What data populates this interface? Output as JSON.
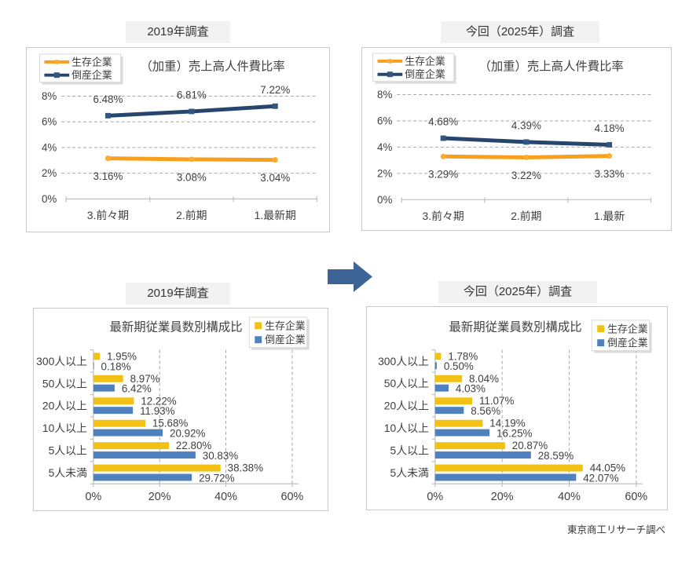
{
  "page": {
    "background": "#FFFFFF",
    "source_note": "東京商工リサーチ調べ"
  },
  "colors": {
    "survive_line": "#F8A01D",
    "survive_marker": "#F9AC2E",
    "bankrupt_line": "#26466D",
    "bankrupt_marker": "#33577F",
    "survive_bar": "#F2C116",
    "bankrupt_bar": "#4E81BD",
    "arrow": "#3C6497",
    "grid": "#A6A6A6",
    "axis": "#BFBFBF",
    "text": "#3F3F3F",
    "title_text": "#404040",
    "panel_border": "#C6C6C6",
    "panel_title_bg": "#F2F2F2",
    "legend_border": "#D9D9D9"
  },
  "chart_data": [
    {
      "id": "line2019",
      "type": "line",
      "panel_title": "2019年調査",
      "title": "（加重）売上高人件費比率",
      "categories": [
        "3.前々期",
        "2.前期",
        "1.最新期"
      ],
      "y_ticks": [
        "0%",
        "2%",
        "4%",
        "6%",
        "8%"
      ],
      "ylim": [
        0,
        8
      ],
      "grid": "dashed-horizontal",
      "legend_position": "top-left",
      "series": [
        {
          "name": "生存企業",
          "role": "survive",
          "marker": "circle",
          "label_side": "below",
          "values": [
            3.16,
            3.08,
            3.04
          ],
          "labels": [
            "3.16%",
            "3.08%",
            "3.04%"
          ]
        },
        {
          "name": "倒産企業",
          "role": "bankrupt",
          "marker": "square",
          "label_side": "above",
          "values": [
            6.48,
            6.81,
            7.22
          ],
          "labels": [
            "6.48%",
            "6.81%",
            "7.22%"
          ]
        }
      ]
    },
    {
      "id": "line2025",
      "type": "line",
      "panel_title": "今回（2025年）調査",
      "title": "（加重）売上高人件費比率",
      "categories": [
        "3.前々期",
        "2.前期",
        "1.最新"
      ],
      "y_ticks": [
        "0%",
        "2%",
        "4%",
        "6%",
        "8%"
      ],
      "ylim": [
        0,
        8
      ],
      "grid": "dashed-horizontal",
      "legend_position": "top-left",
      "series": [
        {
          "name": "生存企業",
          "role": "survive",
          "marker": "circle",
          "label_side": "below",
          "values": [
            3.29,
            3.22,
            3.33
          ],
          "labels": [
            "3.29%",
            "3.22%",
            "3.33%"
          ]
        },
        {
          "name": "倒産企業",
          "role": "bankrupt",
          "marker": "square",
          "label_side": "above",
          "values": [
            4.68,
            4.39,
            4.18
          ],
          "labels": [
            "4.68%",
            "4.39%",
            "4.18%"
          ]
        }
      ]
    },
    {
      "id": "bar2019",
      "type": "bar",
      "panel_title": "2019年調査",
      "title": "最新期従業員数別構成比",
      "categories": [
        "300人以上",
        "50人以上",
        "20人以上",
        "10人以上",
        "5人以上",
        "5人未満"
      ],
      "x_ticks": [
        "0%",
        "20%",
        "40%",
        "60%"
      ],
      "xlim": [
        0,
        60
      ],
      "grid": "dashed-vertical",
      "legend_position": "top-right",
      "series": [
        {
          "name": "生存企業",
          "role": "survive",
          "values": [
            1.95,
            8.97,
            12.22,
            15.68,
            22.8,
            38.38
          ],
          "labels": [
            "1.95%",
            "8.97%",
            "12.22%",
            "15.68%",
            "22.80%",
            "38.38%"
          ]
        },
        {
          "name": "倒産企業",
          "role": "bankrupt",
          "values": [
            0.18,
            6.42,
            11.93,
            20.92,
            30.83,
            29.72
          ],
          "labels": [
            "0.18%",
            "6.42%",
            "11.93%",
            "20.92%",
            "30.83%",
            "29.72%"
          ]
        }
      ]
    },
    {
      "id": "bar2025",
      "type": "bar",
      "panel_title": "今回（2025年）調査",
      "title": "最新期従業員数別構成比",
      "categories": [
        "300人以上",
        "50人以上",
        "20人以上",
        "10人以上",
        "5人以上",
        "5人未満"
      ],
      "x_ticks": [
        "0%",
        "20%",
        "40%",
        "60%"
      ],
      "xlim": [
        0,
        60
      ],
      "grid": "dashed-vertical",
      "legend_position": "top-right",
      "series": [
        {
          "name": "生存企業",
          "role": "survive",
          "values": [
            1.78,
            8.04,
            11.07,
            14.19,
            20.87,
            44.05
          ],
          "labels": [
            "1.78%",
            "8.04%",
            "11.07%",
            "14.19%",
            "20.87%",
            "44.05%"
          ]
        },
        {
          "name": "倒産企業",
          "role": "bankrupt",
          "values": [
            0.5,
            4.03,
            8.56,
            16.25,
            28.59,
            42.07
          ],
          "labels": [
            "0.50%",
            "4.03%",
            "8.56%",
            "16.25%",
            "28.59%",
            "42.07%"
          ]
        }
      ]
    }
  ]
}
